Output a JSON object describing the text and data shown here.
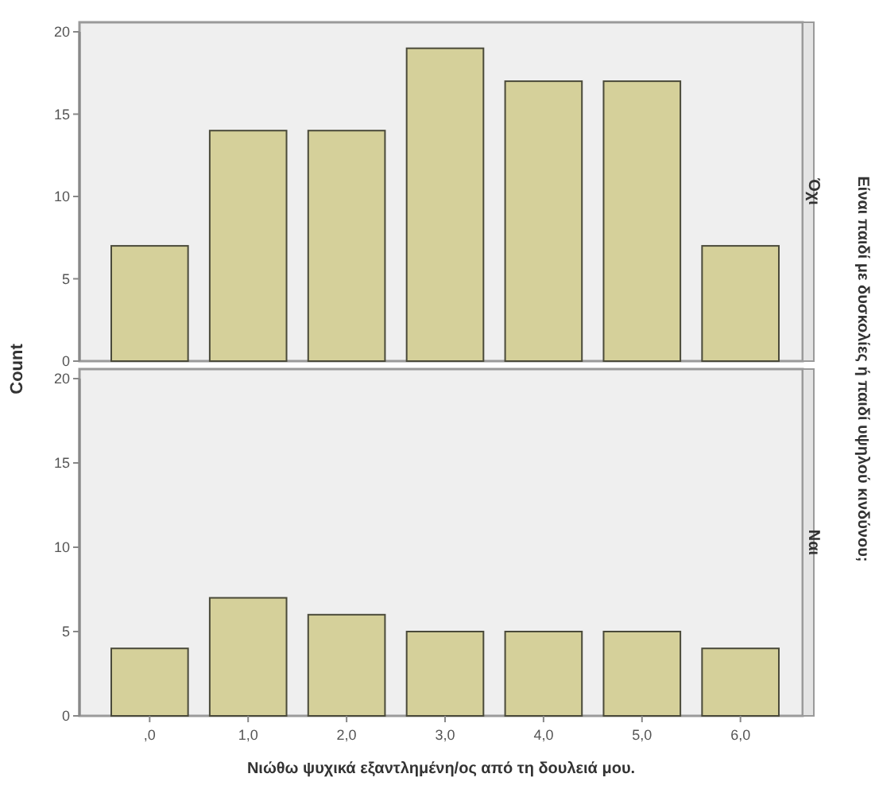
{
  "chart_data": [
    {
      "type": "bar",
      "title": "Όχι",
      "ylabel": "Count",
      "y2label": "Είναι παιδί με δυσκολίες ή παιδί υψηλού κινδύνου;",
      "categories": [
        ",0",
        "1,0",
        "2,0",
        "3,0",
        "4,0",
        "5,0",
        "6,0"
      ],
      "values": [
        7,
        14,
        14,
        19,
        17,
        17,
        7
      ],
      "color": "#d5d09a",
      "ylim": [
        0,
        20
      ],
      "yticks": [
        0,
        5,
        10,
        15,
        20
      ],
      "tick_labels": "y",
      "grid": false
    },
    {
      "type": "bar",
      "title": "Ναι",
      "xlabel": "Νιώθω ψυχικά εξαντλημένη/ος από τη δουλειά μου.",
      "categories": [
        ",0",
        "1,0",
        "2,0",
        "3,0",
        "4,0",
        "5,0",
        "6,0"
      ],
      "values": [
        4,
        7,
        6,
        5,
        5,
        5,
        4
      ],
      "color": "#d5d09a",
      "ylim": [
        0,
        20
      ],
      "yticks": [
        0,
        5,
        10,
        15,
        20
      ],
      "grid": false
    }
  ]
}
